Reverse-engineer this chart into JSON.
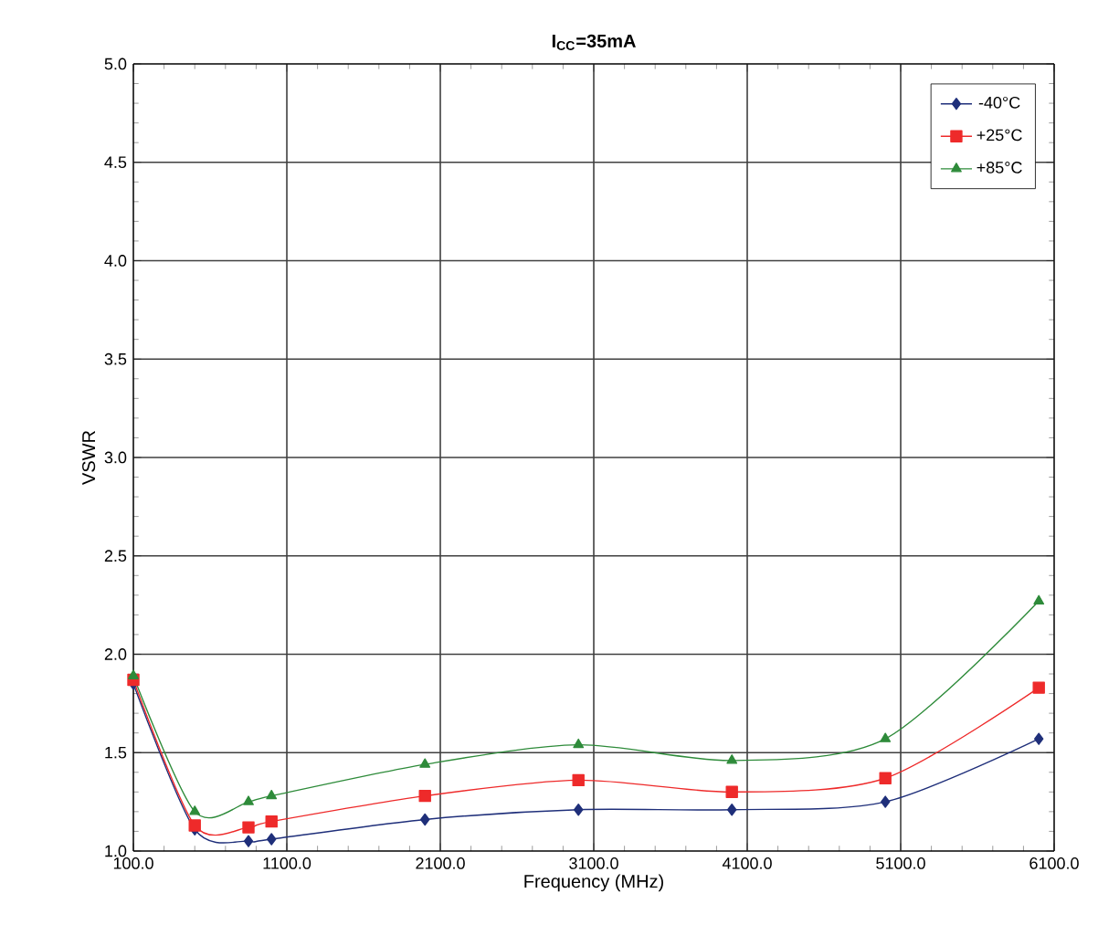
{
  "chart_data": {
    "type": "line",
    "title": "I$_{CC}$=35mA",
    "xlabel": "Frequency (MHz)",
    "ylabel": "VSWR",
    "x": [
      100,
      500,
      850,
      1000,
      2000,
      3000,
      4000,
      5000,
      6000
    ],
    "series": [
      {
        "name": "-40°C",
        "color": "#1f2f7a",
        "marker": "diamond",
        "values": [
          1.85,
          1.11,
          1.05,
          1.06,
          1.16,
          1.21,
          1.21,
          1.25,
          1.57
        ]
      },
      {
        "name": "+25°C",
        "color": "#ee2a2a",
        "marker": "square",
        "values": [
          1.87,
          1.13,
          1.12,
          1.15,
          1.28,
          1.36,
          1.3,
          1.37,
          1.83
        ]
      },
      {
        "name": "+85°C",
        "color": "#2e8b3a",
        "marker": "triangle",
        "values": [
          1.89,
          1.2,
          1.25,
          1.28,
          1.44,
          1.54,
          1.46,
          1.57,
          2.27
        ]
      }
    ],
    "xlim": [
      100,
      6100
    ],
    "xticks": [
      {
        "value": 100,
        "label": "100.0"
      },
      {
        "value": 1100,
        "label": "1100.0"
      },
      {
        "value": 2100,
        "label": "2100.0"
      },
      {
        "value": 3100,
        "label": "3100.0"
      },
      {
        "value": 4100,
        "label": "4100.0"
      },
      {
        "value": 5100,
        "label": "5100.0"
      },
      {
        "value": 6100,
        "label": "6100.0"
      }
    ],
    "ylim": [
      1.0,
      5.0
    ],
    "yticks": [
      {
        "value": 1.0,
        "label": "1.0"
      },
      {
        "value": 1.5,
        "label": "1.5"
      },
      {
        "value": 2.0,
        "label": "2.0"
      },
      {
        "value": 2.5,
        "label": "2.5"
      },
      {
        "value": 3.0,
        "label": "3.0"
      },
      {
        "value": 3.5,
        "label": "3.5"
      },
      {
        "value": 4.0,
        "label": "4.0"
      },
      {
        "value": 4.5,
        "label": "4.5"
      },
      {
        "value": 5.0,
        "label": "5.0"
      }
    ],
    "grid": true,
    "legend": "top right",
    "line_style": "solid"
  }
}
